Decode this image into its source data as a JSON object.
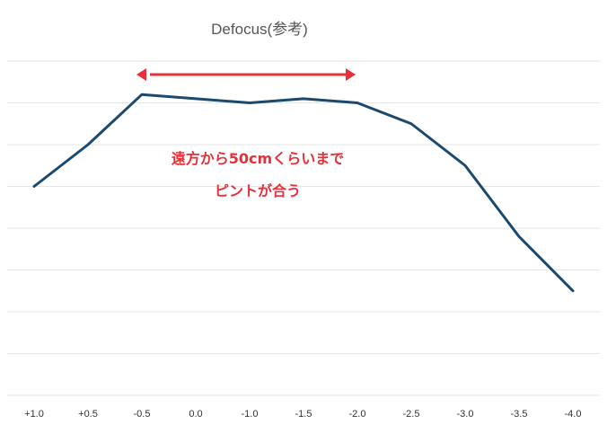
{
  "chart_data": {
    "type": "line",
    "title": "Defocus(参考)",
    "xlabel": "",
    "ylabel": "",
    "categories": [
      "+1.0",
      "+0.5",
      "-0.5",
      "0.0",
      "-1.0",
      "-1.5",
      "-2.0",
      "-2.5",
      "-3.0",
      "-3.5",
      "-4.0"
    ],
    "series": [
      {
        "values": [
          5.0,
          6.0,
          7.2,
          7.1,
          7.0,
          7.1,
          7.0,
          6.5,
          5.5,
          3.8,
          2.5
        ]
      }
    ],
    "ylim": [
      0,
      8
    ],
    "grid": true,
    "y_tick_labels_shown": false,
    "annotation": {
      "lines": [
        "遠方から50cmくらいまで",
        "ピントが合う"
      ],
      "range_from": "-0.5",
      "range_to": "-2.0",
      "color": "#e8303a"
    },
    "line_color": "#1b4a6e",
    "grid_color": "#e6e6e6"
  }
}
